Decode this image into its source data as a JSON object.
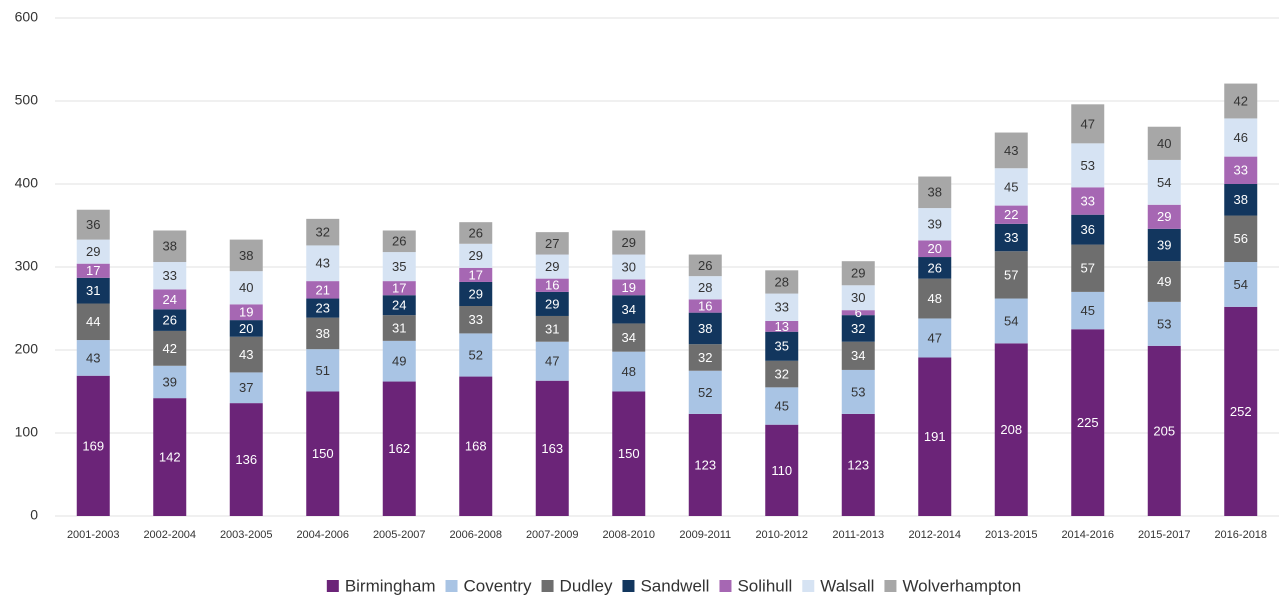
{
  "chart_data": {
    "type": "stacked_bar",
    "categories": [
      "2001-2003",
      "2002-2004",
      "2003-2005",
      "2004-2006",
      "2005-2007",
      "2006-2008",
      "2007-2009",
      "2008-2010",
      "2009-2011",
      "2010-2012",
      "2011-2013",
      "2012-2014",
      "2013-2015",
      "2014-2016",
      "2015-2017",
      "2016-2018"
    ],
    "series": [
      {
        "name": "Birmingham",
        "color": "#6b2478",
        "values": [
          169,
          142,
          136,
          150,
          162,
          168,
          163,
          150,
          123,
          110,
          123,
          191,
          208,
          225,
          205,
          252
        ]
      },
      {
        "name": "Coventry",
        "color": "#a9c4e4",
        "values": [
          43,
          39,
          37,
          51,
          49,
          52,
          47,
          48,
          52,
          45,
          53,
          47,
          54,
          45,
          53,
          54
        ]
      },
      {
        "name": "Dudley",
        "color": "#6e6e6e",
        "values": [
          44,
          42,
          43,
          38,
          31,
          33,
          31,
          34,
          32,
          32,
          34,
          48,
          57,
          57,
          49,
          56
        ]
      },
      {
        "name": "Sandwell",
        "color": "#12365e",
        "values": [
          31,
          26,
          20,
          23,
          24,
          29,
          29,
          34,
          38,
          35,
          32,
          26,
          33,
          36,
          39,
          38
        ]
      },
      {
        "name": "Solihull",
        "color": "#a667b3",
        "values": [
          17,
          24,
          19,
          21,
          17,
          17,
          16,
          19,
          16,
          13,
          6,
          20,
          22,
          33,
          29,
          33
        ]
      },
      {
        "name": "Walsall",
        "color": "#d6e3f3",
        "values": [
          29,
          33,
          40,
          43,
          35,
          29,
          29,
          30,
          28,
          33,
          30,
          39,
          45,
          53,
          54,
          46
        ]
      },
      {
        "name": "Wolverhampton",
        "color": "#a7a7a7",
        "values": [
          36,
          38,
          38,
          32,
          26,
          26,
          27,
          29,
          26,
          28,
          29,
          38,
          43,
          47,
          40,
          42
        ]
      }
    ],
    "ylim": [
      0,
      600
    ],
    "yticks": [
      0,
      100,
      200,
      300,
      400,
      500,
      600
    ],
    "grid": true,
    "legend": "bottom"
  }
}
